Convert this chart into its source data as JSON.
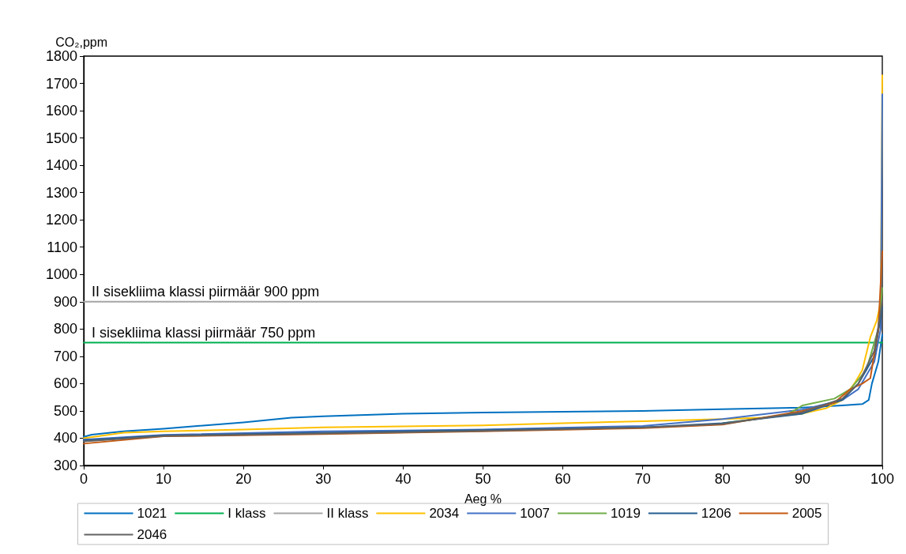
{
  "chart_data": {
    "type": "line",
    "xlabel": "Aeg %",
    "ylabel": "CO₂,ppm",
    "xlim": [
      0,
      100
    ],
    "xticks": [
      0,
      10,
      20,
      30,
      40,
      50,
      60,
      70,
      80,
      90,
      100
    ],
    "ylim": [
      300,
      1800
    ],
    "yticks": [
      300,
      400,
      500,
      600,
      700,
      800,
      900,
      1000,
      1100,
      1200,
      1300,
      1400,
      1500,
      1600,
      1700,
      1800
    ],
    "grid": false,
    "legend": "bottom",
    "marker": "none",
    "line_style": "solid",
    "annotations": [
      {
        "text": "II sisekliima klassi piirmäär 900 ppm",
        "x": 1,
        "y": 900
      },
      {
        "text": "I sisekliima klassi piirmäär 750 ppm",
        "x": 1,
        "y": 750
      }
    ],
    "series": [
      {
        "name": "1021",
        "color": "#0070c0",
        "x": [
          0,
          1,
          5,
          10,
          20,
          26,
          30,
          40,
          50,
          60,
          70,
          80,
          90,
          95,
          97.5,
          98.3,
          98.7,
          99.5,
          100
        ],
        "values": [
          405,
          413,
          425,
          435,
          458,
          475,
          480,
          490,
          494,
          497,
          500,
          506,
          512,
          520,
          525,
          540,
          600,
          680,
          780
        ]
      },
      {
        "name": "I klass",
        "color": "#00b050",
        "x": [
          0,
          100
        ],
        "values": [
          750,
          750
        ]
      },
      {
        "name": "II klass",
        "color": "#a5a5a5",
        "x": [
          0,
          100
        ],
        "values": [
          900,
          900
        ]
      },
      {
        "name": "2034",
        "color": "#ffc000",
        "x": [
          0,
          5,
          10,
          20,
          30,
          40,
          50,
          60,
          70,
          80,
          85,
          90,
          93,
          95,
          96.5,
          97.5,
          98.5,
          99.3,
          99.8,
          100
        ],
        "values": [
          400,
          420,
          425,
          432,
          440,
          443,
          447,
          455,
          462,
          470,
          475,
          490,
          510,
          540,
          600,
          650,
          770,
          830,
          900,
          1730
        ]
      },
      {
        "name": "1007",
        "color": "#4472c4",
        "x": [
          0,
          10,
          30,
          50,
          70,
          80,
          90,
          95,
          97,
          99,
          99.8,
          100
        ],
        "values": [
          395,
          412,
          425,
          432,
          445,
          470,
          505,
          540,
          580,
          680,
          800,
          1660
        ]
      },
      {
        "name": "1019",
        "color": "#70ad47",
        "x": [
          80,
          88,
          90,
          94,
          96,
          98,
          99.5,
          100
        ],
        "values": [
          455,
          485,
          520,
          545,
          580,
          650,
          800,
          950
        ]
      },
      {
        "name": "1206",
        "color": "#255e91",
        "x": [
          0,
          10,
          30,
          50,
          70,
          80,
          90,
          95,
          97,
          99,
          100
        ],
        "values": [
          392,
          410,
          420,
          430,
          440,
          455,
          490,
          540,
          600,
          700,
          880
        ]
      },
      {
        "name": "2005",
        "color": "#c55a11",
        "x": [
          0,
          10,
          30,
          50,
          70,
          80,
          90,
          94,
          96,
          97.5,
          98.5,
          99.5,
          100
        ],
        "values": [
          380,
          407,
          415,
          425,
          437,
          450,
          500,
          530,
          580,
          600,
          620,
          800,
          1085
        ]
      },
      {
        "name": "2046",
        "color": "#636363",
        "x": [
          0,
          10,
          30,
          50,
          70,
          80,
          90,
          95,
          97,
          99,
          100
        ],
        "values": [
          388,
          408,
          417,
          427,
          439,
          452,
          495,
          545,
          600,
          720,
          900
        ]
      }
    ]
  }
}
